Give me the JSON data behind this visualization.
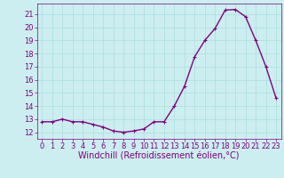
{
  "x": [
    0,
    1,
    2,
    3,
    4,
    5,
    6,
    7,
    8,
    9,
    10,
    11,
    12,
    13,
    14,
    15,
    16,
    17,
    18,
    19,
    20,
    21,
    22,
    23
  ],
  "y": [
    12.8,
    12.8,
    13.0,
    12.8,
    12.8,
    12.6,
    12.4,
    12.1,
    12.0,
    12.1,
    12.25,
    12.8,
    12.8,
    14.0,
    15.5,
    17.75,
    19.0,
    19.9,
    21.3,
    21.35,
    20.8,
    19.0,
    17.0,
    14.6
  ],
  "line_color": "#7f007f",
  "marker": "+",
  "marker_color": "#7f007f",
  "marker_size": 3,
  "xlabel": "Windchill (Refroidissement éolien,°C)",
  "xlabel_fontsize": 7,
  "ylim": [
    11.5,
    21.8
  ],
  "xlim": [
    -0.5,
    23.5
  ],
  "yticks": [
    12,
    13,
    14,
    15,
    16,
    17,
    18,
    19,
    20,
    21
  ],
  "xticks": [
    0,
    1,
    2,
    3,
    4,
    5,
    6,
    7,
    8,
    9,
    10,
    11,
    12,
    13,
    14,
    15,
    16,
    17,
    18,
    19,
    20,
    21,
    22,
    23
  ],
  "bg_color": "#cceef0",
  "grid_color": "#aadddd",
  "tick_fontsize": 6,
  "line_width": 1.0
}
